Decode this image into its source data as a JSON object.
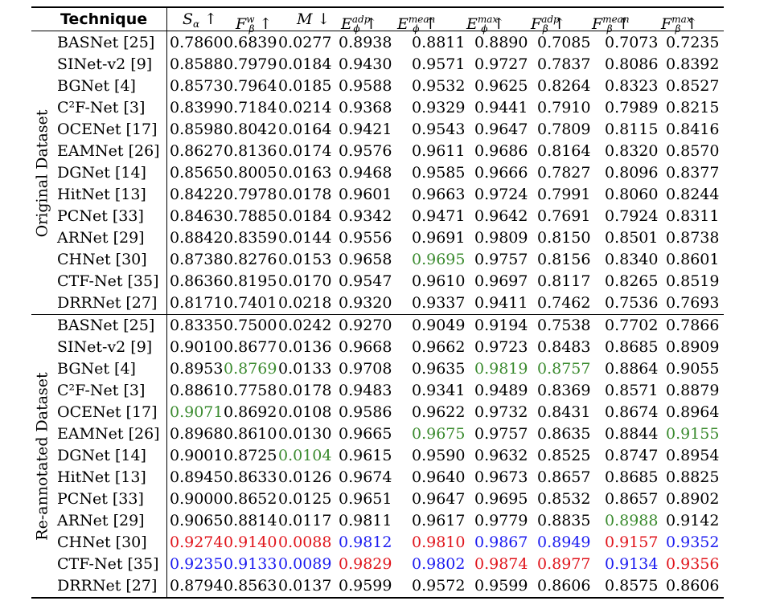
{
  "header": {
    "technique": "Technique",
    "columns": [
      {
        "sym": "S",
        "sub": "α",
        "sup": "",
        "arrow": "↑"
      },
      {
        "sym": "F",
        "sub": "β",
        "sup": "w",
        "arrow": "↑"
      },
      {
        "sym": "M",
        "sub": "",
        "sup": "",
        "arrow": "↓"
      },
      {
        "sym": "E",
        "sub": "ϕ",
        "sup": "adp",
        "arrow": "↑"
      },
      {
        "sym": "E",
        "sub": "ϕ",
        "sup": "mean",
        "arrow": "↑"
      },
      {
        "sym": "E",
        "sub": "ϕ",
        "sup": "max",
        "arrow": "↑"
      },
      {
        "sym": "F",
        "sub": "β",
        "sup": "adp",
        "arrow": "↑"
      },
      {
        "sym": "F",
        "sub": "β",
        "sup": "mean",
        "arrow": "↑"
      },
      {
        "sym": "F",
        "sub": "β",
        "sup": "max",
        "arrow": "↑"
      }
    ]
  },
  "groups": [
    {
      "label": "Original Dataset",
      "rows": [
        {
          "name": "BASNet [25]",
          "values": [
            "0.7860",
            "0.6839",
            "0.0277",
            "0.8938",
            "0.8811",
            "0.8890",
            "0.7085",
            "0.7073",
            "0.7235"
          ],
          "colors": [
            "",
            "",
            "",
            "",
            "",
            "",
            "",
            "",
            ""
          ]
        },
        {
          "name": "SINet-v2 [9]",
          "values": [
            "0.8588",
            "0.7979",
            "0.0184",
            "0.9430",
            "0.9571",
            "0.9727",
            "0.7837",
            "0.8086",
            "0.8392"
          ],
          "colors": [
            "",
            "",
            "",
            "",
            "",
            "",
            "",
            "",
            ""
          ]
        },
        {
          "name": "BGNet [4]",
          "values": [
            "0.8573",
            "0.7964",
            "0.0185",
            "0.9588",
            "0.9532",
            "0.9625",
            "0.8264",
            "0.8323",
            "0.8527"
          ],
          "colors": [
            "",
            "",
            "",
            "",
            "",
            "",
            "",
            "",
            ""
          ]
        },
        {
          "name": "C²F-Net [3]",
          "values": [
            "0.8399",
            "0.7184",
            "0.0214",
            "0.9368",
            "0.9329",
            "0.9441",
            "0.7910",
            "0.7989",
            "0.8215"
          ],
          "colors": [
            "",
            "",
            "",
            "",
            "",
            "",
            "",
            "",
            ""
          ]
        },
        {
          "name": "OCENet [17]",
          "values": [
            "0.8598",
            "0.8042",
            "0.0164",
            "0.9421",
            "0.9543",
            "0.9647",
            "0.7809",
            "0.8115",
            "0.8416"
          ],
          "colors": [
            "",
            "",
            "",
            "",
            "",
            "",
            "",
            "",
            ""
          ]
        },
        {
          "name": "EAMNet [26]",
          "values": [
            "0.8627",
            "0.8136",
            "0.0174",
            "0.9576",
            "0.9611",
            "0.9686",
            "0.8164",
            "0.8320",
            "0.8570"
          ],
          "colors": [
            "",
            "",
            "",
            "",
            "",
            "",
            "",
            "",
            ""
          ]
        },
        {
          "name": "DGNet [14]",
          "values": [
            "0.8565",
            "0.8005",
            "0.0163",
            "0.9468",
            "0.9585",
            "0.9666",
            "0.7827",
            "0.8096",
            "0.8377"
          ],
          "colors": [
            "",
            "",
            "",
            "",
            "",
            "",
            "",
            "",
            ""
          ]
        },
        {
          "name": "HitNet [13]",
          "values": [
            "0.8422",
            "0.7978",
            "0.0178",
            "0.9601",
            "0.9663",
            "0.9724",
            "0.7991",
            "0.8060",
            "0.8244"
          ],
          "colors": [
            "",
            "",
            "",
            "",
            "",
            "",
            "",
            "",
            ""
          ]
        },
        {
          "name": "PCNet [33]",
          "values": [
            "0.8463",
            "0.7885",
            "0.0184",
            "0.9342",
            "0.9471",
            "0.9642",
            "0.7691",
            "0.7924",
            "0.8311"
          ],
          "colors": [
            "",
            "",
            "",
            "",
            "",
            "",
            "",
            "",
            ""
          ]
        },
        {
          "name": "ARNet [29]",
          "values": [
            "0.8842",
            "0.8359",
            "0.0144",
            "0.9556",
            "0.9691",
            "0.9809",
            "0.8150",
            "0.8501",
            "0.8738"
          ],
          "colors": [
            "",
            "",
            "",
            "",
            "",
            "",
            "",
            "",
            ""
          ]
        },
        {
          "name": "CHNet [30]",
          "values": [
            "0.8738",
            "0.8276",
            "0.0153",
            "0.9658",
            "0.9695",
            "0.9757",
            "0.8156",
            "0.8340",
            "0.8601"
          ],
          "colors": [
            "",
            "",
            "",
            "",
            "green",
            "",
            "",
            "",
            ""
          ]
        },
        {
          "name": "CTF-Net [35]",
          "values": [
            "0.8636",
            "0.8195",
            "0.0170",
            "0.9547",
            "0.9610",
            "0.9697",
            "0.8117",
            "0.8265",
            "0.8519"
          ],
          "colors": [
            "",
            "",
            "",
            "",
            "",
            "",
            "",
            "",
            ""
          ]
        },
        {
          "name": "DRRNet [27]",
          "values": [
            "0.8171",
            "0.7401",
            "0.0218",
            "0.9320",
            "0.9337",
            "0.9411",
            "0.7462",
            "0.7536",
            "0.7693"
          ],
          "colors": [
            "",
            "",
            "",
            "",
            "",
            "",
            "",
            "",
            ""
          ]
        }
      ]
    },
    {
      "label": "Re-annotated Dataset",
      "rows": [
        {
          "name": "BASNet [25]",
          "values": [
            "0.8335",
            "0.7500",
            "0.0242",
            "0.9270",
            "0.9049",
            "0.9194",
            "0.7538",
            "0.7702",
            "0.7866"
          ],
          "colors": [
            "",
            "",
            "",
            "",
            "",
            "",
            "",
            "",
            ""
          ]
        },
        {
          "name": "SINet-v2 [9]",
          "values": [
            "0.9010",
            "0.8677",
            "0.0136",
            "0.9668",
            "0.9662",
            "0.9723",
            "0.8483",
            "0.8685",
            "0.8909"
          ],
          "colors": [
            "",
            "",
            "",
            "",
            "",
            "",
            "",
            "",
            ""
          ]
        },
        {
          "name": "BGNet [4]",
          "values": [
            "0.8953",
            "0.8769",
            "0.0133",
            "0.9708",
            "0.9635",
            "0.9819",
            "0.8757",
            "0.8864",
            "0.9055"
          ],
          "colors": [
            "",
            "green",
            "",
            "",
            "",
            "green",
            "green",
            "",
            ""
          ]
        },
        {
          "name": "C²F-Net [3]",
          "values": [
            "0.8861",
            "0.7758",
            "0.0178",
            "0.9483",
            "0.9341",
            "0.9489",
            "0.8369",
            "0.8571",
            "0.8879"
          ],
          "colors": [
            "",
            "",
            "",
            "",
            "",
            "",
            "",
            "",
            ""
          ]
        },
        {
          "name": "OCENet [17]",
          "values": [
            "0.9071",
            "0.8692",
            "0.0108",
            "0.9586",
            "0.9622",
            "0.9732",
            "0.8431",
            "0.8674",
            "0.8964"
          ],
          "colors": [
            "green",
            "",
            "",
            "",
            "",
            "",
            "",
            "",
            ""
          ]
        },
        {
          "name": "EAMNet [26]",
          "values": [
            "0.8968",
            "0.8610",
            "0.0130",
            "0.9665",
            "0.9675",
            "0.9757",
            "0.8635",
            "0.8844",
            "0.9155"
          ],
          "colors": [
            "",
            "",
            "",
            "",
            "green",
            "",
            "",
            "",
            "green"
          ]
        },
        {
          "name": "DGNet [14]",
          "values": [
            "0.9001",
            "0.8725",
            "0.0104",
            "0.9615",
            "0.9590",
            "0.9632",
            "0.8525",
            "0.8747",
            "0.8954"
          ],
          "colors": [
            "",
            "",
            "green",
            "",
            "",
            "",
            "",
            "",
            ""
          ]
        },
        {
          "name": "HitNet [13]",
          "values": [
            "0.8945",
            "0.8633",
            "0.0126",
            "0.9674",
            "0.9640",
            "0.9673",
            "0.8657",
            "0.8685",
            "0.8825"
          ],
          "colors": [
            "",
            "",
            "",
            "",
            "",
            "",
            "",
            "",
            ""
          ]
        },
        {
          "name": "PCNet [33]",
          "values": [
            "0.9000",
            "0.8652",
            "0.0125",
            "0.9651",
            "0.9647",
            "0.9695",
            "0.8532",
            "0.8657",
            "0.8902"
          ],
          "colors": [
            "",
            "",
            "",
            "",
            "",
            "",
            "",
            "",
            ""
          ]
        },
        {
          "name": "ARNet [29]",
          "values": [
            "0.9065",
            "0.8814",
            "0.0117",
            "0.9811",
            "0.9617",
            "0.9779",
            "0.8835",
            "0.8988",
            "0.9142"
          ],
          "colors": [
            "",
            "",
            "",
            "",
            "",
            "",
            "",
            "green",
            ""
          ]
        },
        {
          "name": "CHNet [30]",
          "values": [
            "0.9274",
            "0.9140",
            "0.0088",
            "0.9812",
            "0.9810",
            "0.9867",
            "0.8949",
            "0.9157",
            "0.9352"
          ],
          "colors": [
            "red",
            "red",
            "red",
            "blue",
            "red",
            "blue",
            "blue",
            "red",
            "blue"
          ]
        },
        {
          "name": "CTF-Net [35]",
          "values": [
            "0.9235",
            "0.9133",
            "0.0089",
            "0.9829",
            "0.9802",
            "0.9874",
            "0.8977",
            "0.9134",
            "0.9356"
          ],
          "colors": [
            "blue",
            "blue",
            "blue",
            "red",
            "blue",
            "red",
            "red",
            "blue",
            "red"
          ]
        },
        {
          "name": "DRRNet [27]",
          "values": [
            "0.8794",
            "0.8563",
            "0.0137",
            "0.9599",
            "0.9572",
            "0.9599",
            "0.8606",
            "0.8575",
            "0.8606"
          ],
          "colors": [
            "",
            "",
            "",
            "",
            "",
            "",
            "",
            "",
            ""
          ]
        }
      ]
    }
  ]
}
